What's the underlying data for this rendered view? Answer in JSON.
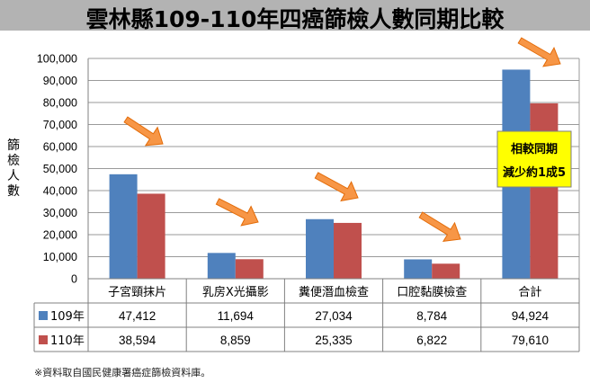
{
  "title": "雲林縣109-110年四癌篩檢人數同期比較",
  "footnote": "※資料取自國民健康署癌症篩檢資料庫。",
  "colors": {
    "series_109": "#4f81bd",
    "series_110": "#c0504d",
    "note_box": "#ffff00",
    "arrow": "#f79646",
    "title_band": "#b3b3b3"
  },
  "annotation": {
    "line1": "相較同期",
    "line2": "減少約1成5"
  },
  "chart_data": {
    "type": "bar",
    "ylabel": "篩檢人數",
    "ylim": [
      0,
      100000
    ],
    "yticks": [
      "0",
      "10,000",
      "20,000",
      "30,000",
      "40,000",
      "50,000",
      "60,000",
      "70,000",
      "80,000",
      "90,000",
      "100,000"
    ],
    "grid": true,
    "categories": [
      "子宮頸抹片",
      "乳房X光攝影",
      "糞便潛血檢查",
      "口腔黏膜檢查",
      "合計"
    ],
    "series": [
      {
        "name": "109年",
        "values": [
          47412,
          11694,
          27034,
          8784,
          94924
        ],
        "labels": [
          "47,412",
          "11,694",
          "27,034",
          "8,784",
          "94,924"
        ]
      },
      {
        "name": "110年",
        "values": [
          38594,
          8859,
          25335,
          6822,
          79610
        ],
        "labels": [
          "38,594",
          "8,859",
          "25,335",
          "6,822",
          "79,610"
        ]
      }
    ]
  }
}
